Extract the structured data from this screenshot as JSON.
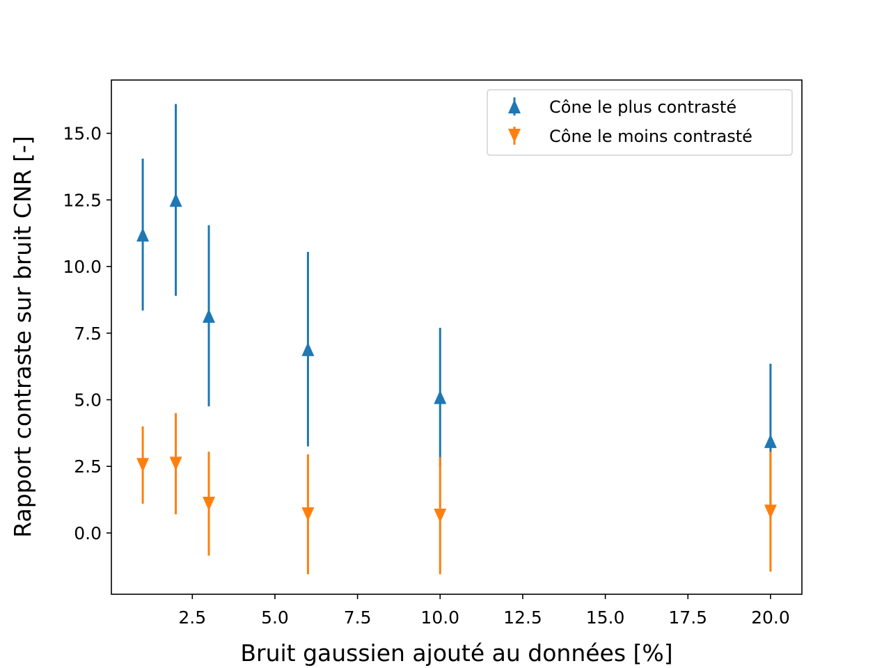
{
  "chart_data": {
    "type": "scatter",
    "title": "",
    "xlabel": "Bruit gaussien ajouté au données [%]",
    "ylabel": "Rapport contraste sur bruit CNR [-]",
    "xlim": [
      0.05,
      20.95
    ],
    "ylim": [
      -2.3,
      17.0
    ],
    "xticks": [
      2.5,
      5.0,
      7.5,
      10.0,
      12.5,
      15.0,
      17.5,
      20.0
    ],
    "xtick_labels": [
      "2.5",
      "5.0",
      "7.5",
      "10.0",
      "12.5",
      "15.0",
      "17.5",
      "20.0"
    ],
    "yticks": [
      0.0,
      2.5,
      5.0,
      7.5,
      10.0,
      12.5,
      15.0
    ],
    "ytick_labels": [
      "0.0",
      "2.5",
      "5.0",
      "7.5",
      "10.0",
      "12.5",
      "15.0"
    ],
    "grid": false,
    "legend_position": "upper right",
    "series": [
      {
        "name": "Cône le plus contrasté",
        "marker": "triangle-up",
        "color": "#1f77b4",
        "x": [
          1,
          2,
          3,
          6,
          10,
          20
        ],
        "y": [
          11.2,
          12.5,
          8.15,
          6.9,
          5.1,
          3.45
        ],
        "yerr": [
          2.85,
          3.6,
          3.4,
          3.65,
          2.6,
          2.9
        ]
      },
      {
        "name": "Cône le moins contrasté",
        "marker": "triangle-down",
        "color": "#ff7f0e",
        "x": [
          1,
          2,
          3,
          6,
          10,
          20
        ],
        "y": [
          2.55,
          2.6,
          1.1,
          0.7,
          0.65,
          0.8
        ],
        "yerr": [
          1.45,
          1.9,
          1.95,
          2.25,
          2.2,
          2.25
        ]
      }
    ]
  }
}
